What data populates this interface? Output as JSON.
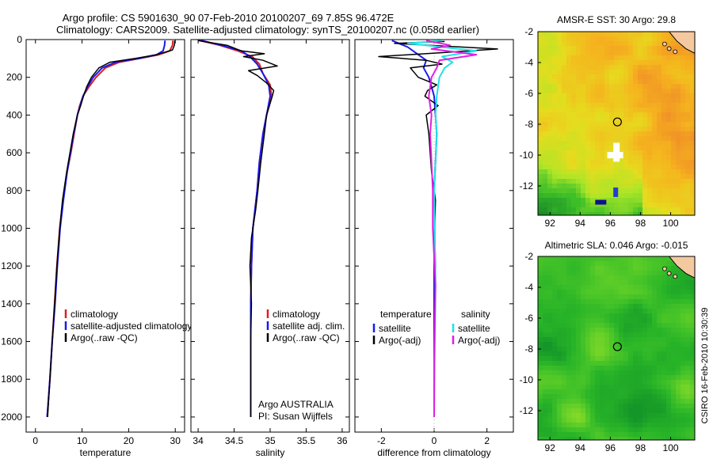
{
  "header": {
    "title_line1": "Argo profile: CS 5901630_90 07-Feb-2010 20100207_69 7.85S 96.472E",
    "title_line2": "Climatology: CARS2009. Satellite-adjusted climatology: synTS_20100207.nc (0.058d earlier)"
  },
  "credit": "CSIRO 16-Feb-2010 10:30:39",
  "colors": {
    "climatology": "#dd2020",
    "satellite": "#1a1aee",
    "argo": "#000000",
    "satellite_salinity": "#20e0e8",
    "argo_salinity": "#e020e0"
  },
  "chart_data": [
    {
      "type": "line",
      "id": "temperature",
      "xlabel": "temperature",
      "ylabel": "",
      "xlim": [
        -2,
        32
      ],
      "ylim": [
        2080,
        0
      ],
      "y_reversed": true,
      "xticks": [
        0,
        10,
        20,
        30
      ],
      "yticks": [
        0,
        200,
        400,
        600,
        800,
        1000,
        1200,
        1400,
        1600,
        1800,
        2000
      ],
      "legend": [
        "climatology",
        "satellite-adjusted climatology",
        "Argo(..raw -QC)"
      ],
      "legend_placement": "lower-right",
      "series": [
        {
          "name": "climatology",
          "color_key": "climatology",
          "width": 2,
          "x": [
            29.5,
            29.4,
            28.8,
            26.5,
            22.5,
            18.0,
            15.0,
            13.0,
            11.5,
            10.2,
            9.5,
            9.0,
            8.3,
            7.6,
            6.8,
            5.9,
            5.2,
            4.6,
            4.1,
            3.6,
            3.1,
            2.5
          ],
          "y": [
            5,
            30,
            60,
            80,
            100,
            120,
            150,
            200,
            250,
            300,
            350,
            400,
            500,
            600,
            700,
            850,
            1000,
            1200,
            1400,
            1600,
            1800,
            2000
          ]
        },
        {
          "name": "satellite-adjusted climatology",
          "color_key": "satellite",
          "width": 2,
          "x": [
            27.8,
            27.7,
            27.4,
            26.0,
            22.2,
            17.2,
            14.3,
            12.4,
            11.2,
            10.2,
            9.6,
            9.0,
            8.2,
            7.5,
            6.8,
            6.0,
            5.3,
            4.7,
            4.2,
            3.6,
            3.1,
            2.5
          ],
          "y": [
            5,
            30,
            60,
            80,
            100,
            120,
            150,
            200,
            250,
            300,
            350,
            400,
            500,
            600,
            700,
            850,
            1000,
            1200,
            1400,
            1600,
            1800,
            2000
          ]
        },
        {
          "name": "Argo(..raw -QC)",
          "color_key": "argo",
          "width": 1.5,
          "x": [
            29.9,
            29.8,
            29.4,
            26.0,
            21.5,
            16.0,
            13.6,
            12.0,
            11.0,
            10.3,
            9.7,
            9.0,
            8.1,
            7.4,
            6.7,
            5.8,
            5.2,
            4.6,
            4.1,
            3.6,
            3.1,
            2.6
          ],
          "y": [
            5,
            30,
            55,
            80,
            100,
            120,
            150,
            200,
            250,
            300,
            350,
            400,
            500,
            600,
            700,
            850,
            1000,
            1200,
            1400,
            1600,
            1800,
            2000
          ]
        }
      ],
      "annotations": []
    },
    {
      "type": "line",
      "id": "salinity",
      "xlabel": "salinity",
      "ylabel": "",
      "xlim": [
        33.9,
        36.1
      ],
      "ylim": [
        2080,
        0
      ],
      "y_reversed": true,
      "xticks": [
        34,
        34.5,
        35,
        35.5,
        36
      ],
      "legend": [
        "climatology",
        "satellite adj. clim.",
        "Argo(..raw -QC)"
      ],
      "legend_placement": "lower-right",
      "series": [
        {
          "name": "climatology",
          "color_key": "climatology",
          "width": 2,
          "x": [
            34.02,
            34.3,
            34.55,
            34.75,
            34.85,
            34.9,
            35.0,
            35.02,
            34.95,
            34.9,
            34.85,
            34.82,
            34.76,
            34.74,
            34.73,
            34.73,
            34.73,
            34.73
          ],
          "y": [
            5,
            30,
            60,
            90,
            130,
            180,
            240,
            300,
            400,
            500,
            650,
            800,
            1000,
            1200,
            1400,
            1600,
            1800,
            2000
          ]
        },
        {
          "name": "satellite adj. clim.",
          "color_key": "satellite",
          "width": 2,
          "x": [
            34.05,
            34.32,
            34.6,
            34.72,
            34.82,
            34.9,
            34.98,
            35.0,
            34.95,
            34.9,
            34.85,
            34.82,
            34.76,
            34.74,
            34.73,
            34.73,
            34.73,
            34.73
          ],
          "y": [
            5,
            30,
            60,
            90,
            130,
            180,
            240,
            300,
            400,
            500,
            650,
            800,
            1000,
            1200,
            1400,
            1600,
            1800,
            2000
          ]
        },
        {
          "name": "Argo(..raw -QC)",
          "color_key": "argo",
          "width": 1.5,
          "x": [
            34.0,
            34.4,
            34.6,
            34.92,
            34.63,
            34.9,
            35.1,
            34.7,
            34.82,
            34.95,
            35.05,
            35.03,
            34.95,
            34.92,
            34.87,
            34.83,
            34.8,
            34.74,
            34.72,
            34.74,
            34.73,
            34.73,
            34.73
          ],
          "y": [
            5,
            30,
            60,
            75,
            90,
            110,
            140,
            165,
            190,
            230,
            270,
            300,
            400,
            500,
            650,
            800,
            900,
            1050,
            1200,
            1400,
            1600,
            1800,
            2000
          ]
        }
      ],
      "annotations": [
        "Argo AUSTRALIA",
        "PI: Susan Wijffels"
      ]
    },
    {
      "type": "line",
      "id": "difference",
      "xlabel": "difference from climatology",
      "ylabel": "",
      "xlim": [
        -3,
        3
      ],
      "ylim": [
        2080,
        0
      ],
      "y_reversed": true,
      "xticks": [
        -2,
        0,
        2
      ],
      "legend_groups": [
        {
          "heading": "temperature",
          "items": [
            "satellite",
            "Argo(-adj)"
          ]
        },
        {
          "heading": "salinity",
          "items": [
            "satellite",
            "Argo(-adj)"
          ]
        }
      ],
      "legend_placement": "lower-center",
      "series": [
        {
          "name": "satellite",
          "group": "temperature",
          "color_key": "satellite",
          "width": 2,
          "x": [
            -1.6,
            -1.0,
            -0.6,
            -0.3,
            -0.4,
            -0.2,
            -0.1,
            0.0,
            0.05,
            0.1,
            0.05,
            0.0,
            0.02,
            0.0,
            0.0,
            0.0,
            0.0
          ],
          "y": [
            5,
            40,
            80,
            110,
            150,
            200,
            250,
            300,
            400,
            500,
            650,
            800,
            1000,
            1200,
            1500,
            1800,
            2000
          ]
        },
        {
          "name": "Argo(-adj)",
          "group": "temperature",
          "color_key": "argo",
          "width": 1.5,
          "x": [
            0.4,
            -1.5,
            2.4,
            0.2,
            -2.1,
            -0.3,
            0.3,
            -0.9,
            -0.6,
            0.1,
            -0.25,
            -0.35,
            0.15,
            -0.3,
            -0.2,
            -0.15,
            -0.1,
            0.05,
            0.02,
            0.05,
            0.02,
            0.0
          ],
          "y": [
            10,
            20,
            50,
            70,
            90,
            110,
            130,
            150,
            200,
            240,
            270,
            300,
            350,
            400,
            500,
            600,
            700,
            850,
            1000,
            1200,
            1500,
            2000
          ]
        },
        {
          "name": "satellite",
          "group": "salinity",
          "color_key": "satellite_salinity",
          "width": 2,
          "x": [
            0.3,
            -1.0,
            1.6,
            0.3,
            0.7,
            0.4,
            0.2,
            0.1,
            0.05,
            0.1,
            0.05,
            0.0,
            0.02,
            0.05,
            0.02,
            0.0
          ],
          "y": [
            5,
            20,
            60,
            90,
            120,
            150,
            200,
            300,
            400,
            500,
            650,
            800,
            1000,
            1300,
            1700,
            2000
          ]
        },
        {
          "name": "Argo(-adj)",
          "group": "salinity",
          "color_key": "argo_salinity",
          "width": 2,
          "x": [
            -0.3,
            0.6,
            -0.1,
            1.6,
            0.2,
            0.1,
            -0.1,
            -0.2,
            -0.1,
            -0.15,
            -0.1,
            -0.05,
            -0.05,
            0.05,
            0.0,
            0.0
          ],
          "y": [
            5,
            30,
            50,
            80,
            110,
            150,
            200,
            300,
            400,
            500,
            650,
            800,
            1000,
            1300,
            1700,
            2000
          ]
        }
      ],
      "annotations": []
    },
    {
      "type": "heatmap",
      "id": "sst_map",
      "title": "AMSR-E SST: 30 Argo: 29.8",
      "xlim": [
        91.2,
        101.6
      ],
      "ylim": [
        -13.9,
        -2.0
      ],
      "xticks": [
        92,
        94,
        96,
        98,
        100
      ],
      "yticks": [
        -2,
        -4,
        -6,
        -8,
        -10,
        -12
      ],
      "argo_position": [
        96.47,
        -7.85
      ],
      "field": "sea surface temperature (warm = orange, cool = green)"
    },
    {
      "type": "heatmap",
      "id": "sla_map",
      "title": "Altimetric SLA: 0.046 Argo: -0.015",
      "xlim": [
        91.2,
        101.6
      ],
      "ylim": [
        -13.9,
        -2.0
      ],
      "xticks": [
        92,
        94,
        96,
        98,
        100
      ],
      "yticks": [
        -2,
        -4,
        -6,
        -8,
        -10,
        -12
      ],
      "argo_position": [
        96.47,
        -7.85
      ],
      "field": "sea level anomaly (green tones)"
    }
  ]
}
